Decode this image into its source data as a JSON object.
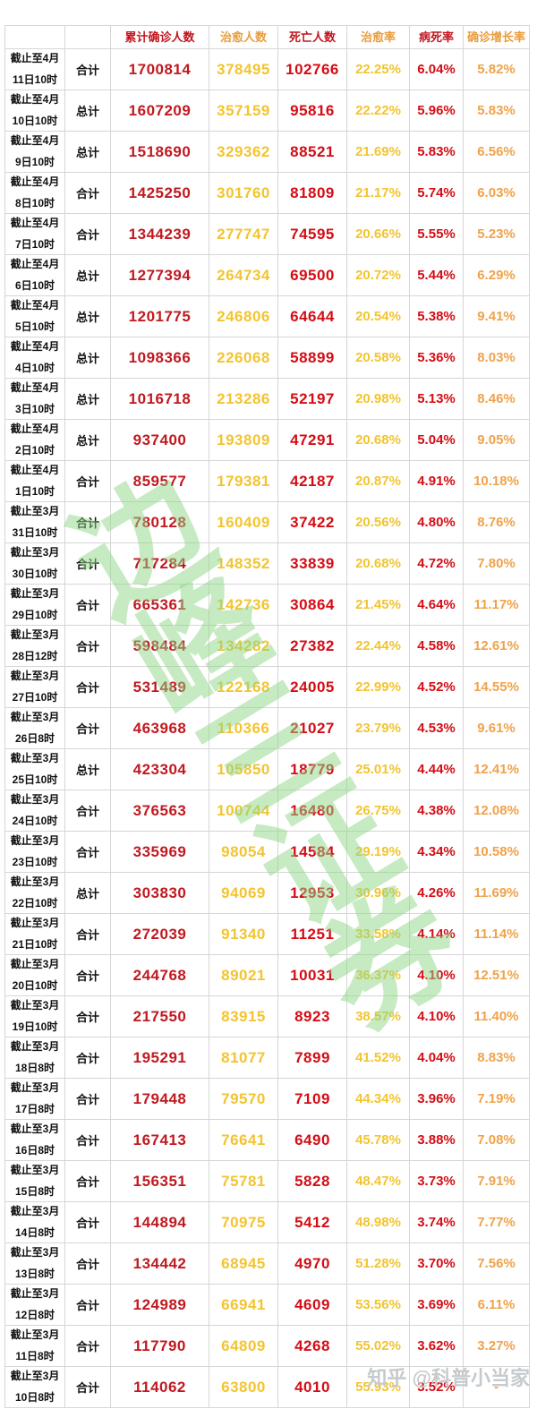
{
  "colors": {
    "header_red": "#c2151d",
    "header_orange": "#ea9c3c",
    "confirmed_red": "#c11920",
    "cured_gold": "#f3c42f",
    "deaths_red": "#d40d15",
    "cure_rate_gold": "#f3c42f",
    "fatality_red": "#d40d15",
    "growth_orange": "#f0a24a",
    "watermark_green": "rgba(142,214,134,0.5)",
    "credit_gray": "rgba(168,173,178,0.65)",
    "border_gray": "#d6d6d6"
  },
  "watermark": {
    "chars": "边峰三证券"
  },
  "credit": {
    "text": "知乎 @科普小当家"
  },
  "chart_data": {
    "type": "table",
    "title": "",
    "columns": [
      {
        "label": "累计确诊人数",
        "header_color": "#c2151d",
        "value_color": "#c11920"
      },
      {
        "label": "治愈人数",
        "header_color": "#ea9c3c",
        "value_color": "#f3c42f"
      },
      {
        "label": "死亡人数",
        "header_color": "#c2151d",
        "value_color": "#d40d15"
      },
      {
        "label": "治愈率",
        "header_color": "#ea9c3c",
        "value_color": "#f3c42f"
      },
      {
        "label": "病死率",
        "header_color": "#c2151d",
        "value_color": "#d40d15"
      },
      {
        "label": "确诊增长率",
        "header_color": "#ea9c3c",
        "value_color": "#f0a24a"
      }
    ],
    "rows": [
      {
        "date_top": "截止至4月",
        "date_bottom": "11日10时",
        "scope": "合计",
        "values": [
          "1700814",
          "378495",
          "102766",
          "22.25%",
          "6.04%",
          "5.82%"
        ]
      },
      {
        "date_top": "截止至4月",
        "date_bottom": "10日10时",
        "scope": "总计",
        "values": [
          "1607209",
          "357159",
          "95816",
          "22.22%",
          "5.96%",
          "5.83%"
        ]
      },
      {
        "date_top": "截止至4月",
        "date_bottom": "9日10时",
        "scope": "总计",
        "values": [
          "1518690",
          "329362",
          "88521",
          "21.69%",
          "5.83%",
          "6.56%"
        ]
      },
      {
        "date_top": "截止至4月",
        "date_bottom": "8日10时",
        "scope": "合计",
        "values": [
          "1425250",
          "301760",
          "81809",
          "21.17%",
          "5.74%",
          "6.03%"
        ]
      },
      {
        "date_top": "截止至4月",
        "date_bottom": "7日10时",
        "scope": "合计",
        "values": [
          "1344239",
          "277747",
          "74595",
          "20.66%",
          "5.55%",
          "5.23%"
        ]
      },
      {
        "date_top": "截止至4月",
        "date_bottom": "6日10时",
        "scope": "总计",
        "values": [
          "1277394",
          "264734",
          "69500",
          "20.72%",
          "5.44%",
          "6.29%"
        ]
      },
      {
        "date_top": "截止至4月",
        "date_bottom": "5日10时",
        "scope": "总计",
        "values": [
          "1201775",
          "246806",
          "64644",
          "20.54%",
          "5.38%",
          "9.41%"
        ]
      },
      {
        "date_top": "截止至4月",
        "date_bottom": "4日10时",
        "scope": "总计",
        "values": [
          "1098366",
          "226068",
          "58899",
          "20.58%",
          "5.36%",
          "8.03%"
        ]
      },
      {
        "date_top": "截止至4月",
        "date_bottom": "3日10时",
        "scope": "总计",
        "values": [
          "1016718",
          "213286",
          "52197",
          "20.98%",
          "5.13%",
          "8.46%"
        ]
      },
      {
        "date_top": "截止至4月",
        "date_bottom": "2日10时",
        "scope": "总计",
        "values": [
          "937400",
          "193809",
          "47291",
          "20.68%",
          "5.04%",
          "9.05%"
        ]
      },
      {
        "date_top": "截止至4月",
        "date_bottom": "1日10时",
        "scope": "合计",
        "values": [
          "859577",
          "179381",
          "42187",
          "20.87%",
          "4.91%",
          "10.18%"
        ]
      },
      {
        "date_top": "截止至3月",
        "date_bottom": "31日10时",
        "scope": "合计",
        "values": [
          "780128",
          "160409",
          "37422",
          "20.56%",
          "4.80%",
          "8.76%"
        ]
      },
      {
        "date_top": "截止至3月",
        "date_bottom": "30日10时",
        "scope": "合计",
        "values": [
          "717284",
          "148352",
          "33839",
          "20.68%",
          "4.72%",
          "7.80%"
        ]
      },
      {
        "date_top": "截止至3月",
        "date_bottom": "29日10时",
        "scope": "合计",
        "values": [
          "665361",
          "142736",
          "30864",
          "21.45%",
          "4.64%",
          "11.17%"
        ]
      },
      {
        "date_top": "截止至3月",
        "date_bottom": "28日12时",
        "scope": "合计",
        "values": [
          "598484",
          "134282",
          "27382",
          "22.44%",
          "4.58%",
          "12.61%"
        ]
      },
      {
        "date_top": "截止至3月",
        "date_bottom": "27日10时",
        "scope": "合计",
        "values": [
          "531489",
          "122168",
          "24005",
          "22.99%",
          "4.52%",
          "14.55%"
        ]
      },
      {
        "date_top": "截止至3月",
        "date_bottom": "26日8时",
        "scope": "合计",
        "values": [
          "463968",
          "110366",
          "21027",
          "23.79%",
          "4.53%",
          "9.61%"
        ]
      },
      {
        "date_top": "截止至3月",
        "date_bottom": "25日10时",
        "scope": "总计",
        "values": [
          "423304",
          "105850",
          "18779",
          "25.01%",
          "4.44%",
          "12.41%"
        ]
      },
      {
        "date_top": "截止至3月",
        "date_bottom": "24日10时",
        "scope": "合计",
        "values": [
          "376563",
          "100744",
          "16480",
          "26.75%",
          "4.38%",
          "12.08%"
        ]
      },
      {
        "date_top": "截止至3月",
        "date_bottom": "23日10时",
        "scope": "合计",
        "values": [
          "335969",
          "98054",
          "14584",
          "29.19%",
          "4.34%",
          "10.58%"
        ]
      },
      {
        "date_top": "截止至3月",
        "date_bottom": "22日10时",
        "scope": "总计",
        "values": [
          "303830",
          "94069",
          "12953",
          "30.96%",
          "4.26%",
          "11.69%"
        ]
      },
      {
        "date_top": "截止至3月",
        "date_bottom": "21日10时",
        "scope": "合计",
        "values": [
          "272039",
          "91340",
          "11251",
          "33.58%",
          "4.14%",
          "11.14%"
        ]
      },
      {
        "date_top": "截止至3月",
        "date_bottom": "20日10时",
        "scope": "合计",
        "values": [
          "244768",
          "89021",
          "10031",
          "36.37%",
          "4.10%",
          "12.51%"
        ]
      },
      {
        "date_top": "截止至3月",
        "date_bottom": "19日10时",
        "scope": "合计",
        "values": [
          "217550",
          "83915",
          "8923",
          "38.57%",
          "4.10%",
          "11.40%"
        ]
      },
      {
        "date_top": "截止至3月",
        "date_bottom": "18日8时",
        "scope": "合计",
        "values": [
          "195291",
          "81077",
          "7899",
          "41.52%",
          "4.04%",
          "8.83%"
        ]
      },
      {
        "date_top": "截止至3月",
        "date_bottom": "17日8时",
        "scope": "合计",
        "values": [
          "179448",
          "79570",
          "7109",
          "44.34%",
          "3.96%",
          "7.19%"
        ]
      },
      {
        "date_top": "截止至3月",
        "date_bottom": "16日8时",
        "scope": "合计",
        "values": [
          "167413",
          "76641",
          "6490",
          "45.78%",
          "3.88%",
          "7.08%"
        ]
      },
      {
        "date_top": "截止至3月",
        "date_bottom": "15日8时",
        "scope": "合计",
        "values": [
          "156351",
          "75781",
          "5828",
          "48.47%",
          "3.73%",
          "7.91%"
        ]
      },
      {
        "date_top": "截止至3月",
        "date_bottom": "14日8时",
        "scope": "合计",
        "values": [
          "144894",
          "70975",
          "5412",
          "48.98%",
          "3.74%",
          "7.77%"
        ]
      },
      {
        "date_top": "截止至3月",
        "date_bottom": "13日8时",
        "scope": "合计",
        "values": [
          "134442",
          "68945",
          "4970",
          "51.28%",
          "3.70%",
          "7.56%"
        ]
      },
      {
        "date_top": "截止至3月",
        "date_bottom": "12日8时",
        "scope": "合计",
        "values": [
          "124989",
          "66941",
          "4609",
          "53.56%",
          "3.69%",
          "6.11%"
        ]
      },
      {
        "date_top": "截止至3月",
        "date_bottom": "11日8时",
        "scope": "合计",
        "values": [
          "117790",
          "64809",
          "4268",
          "55.02%",
          "3.62%",
          "3.27%"
        ]
      },
      {
        "date_top": "截止至3月",
        "date_bottom": "10日8时",
        "scope": "合计",
        "values": [
          "114062",
          "63800",
          "4010",
          "55.93%",
          "3.52%",
          "-"
        ]
      }
    ]
  }
}
